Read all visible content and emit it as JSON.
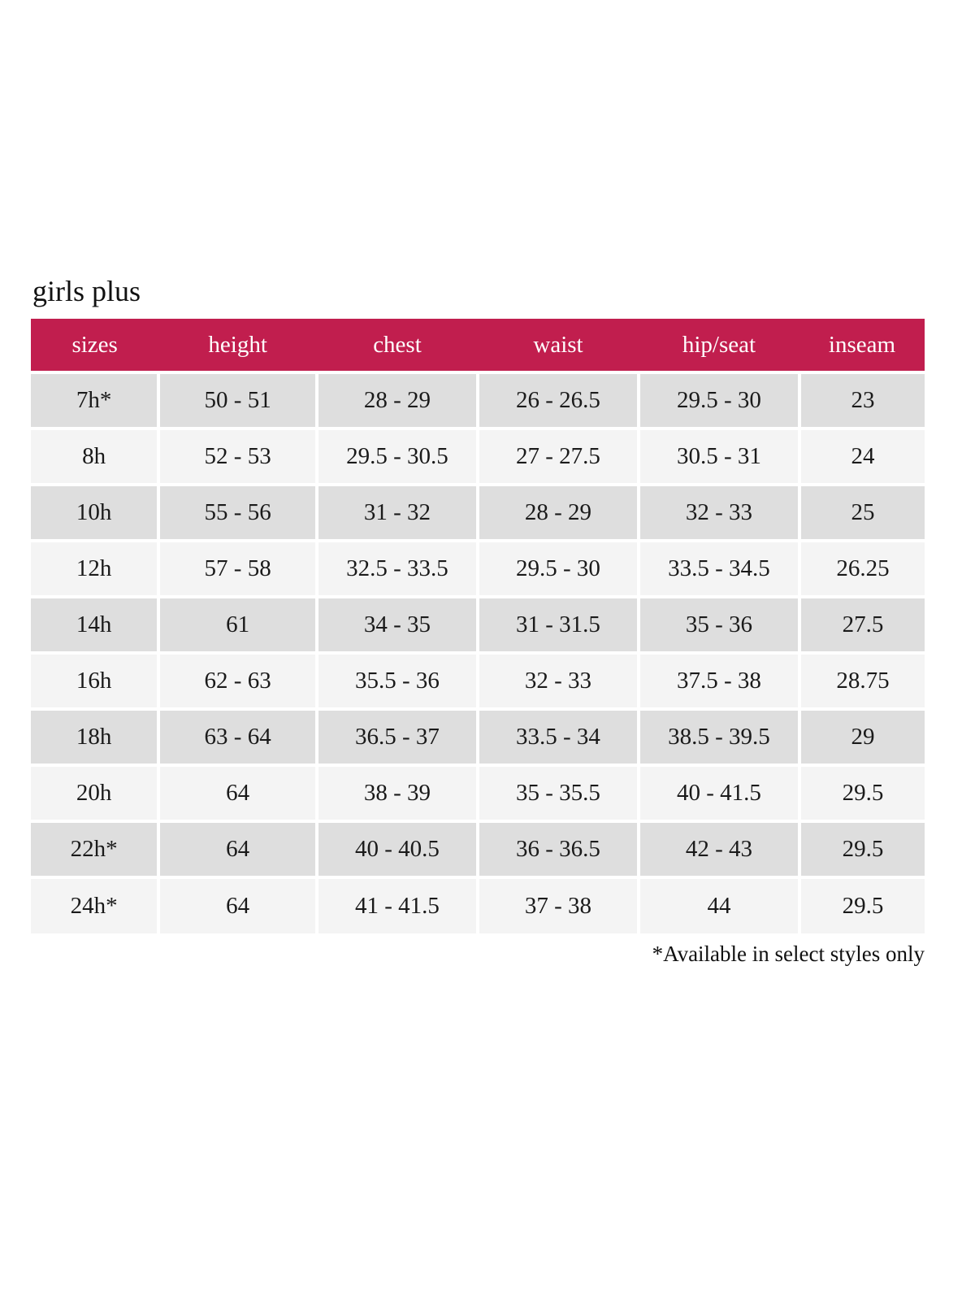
{
  "page": {
    "title": "girls plus",
    "footnote": "*Available in select styles only"
  },
  "colors": {
    "header_bg": "#c11e4e",
    "header_text": "#ffffff",
    "row_alt_bg": "#dedede",
    "row_bg": "#f4f4f4",
    "text": "#1a1a1a"
  },
  "chart_data": {
    "type": "table",
    "title": "girls plus",
    "columns": [
      "sizes",
      "height",
      "chest",
      "waist",
      "hip/seat",
      "inseam"
    ],
    "column_width_pct": [
      14.3,
      17.7,
      18,
      18,
      18,
      14
    ],
    "rows": [
      [
        "7h*",
        "50 - 51",
        "28 - 29",
        "26 - 26.5",
        "29.5 - 30",
        "23"
      ],
      [
        "8h",
        "52 - 53",
        "29.5 - 30.5",
        "27 - 27.5",
        "30.5 - 31",
        "24"
      ],
      [
        "10h",
        "55 - 56",
        "31 - 32",
        "28 - 29",
        "32 - 33",
        "25"
      ],
      [
        "12h",
        "57 - 58",
        "32.5 - 33.5",
        "29.5 - 30",
        "33.5 - 34.5",
        "26.25"
      ],
      [
        "14h",
        "61",
        "34 - 35",
        "31 - 31.5",
        "35 - 36",
        "27.5"
      ],
      [
        "16h",
        "62 - 63",
        "35.5 - 36",
        "32 - 33",
        "37.5 - 38",
        "28.75"
      ],
      [
        "18h",
        "63 - 64",
        "36.5 - 37",
        "33.5 - 34",
        "38.5 - 39.5",
        "29"
      ],
      [
        "20h",
        "64",
        "38 - 39",
        "35 - 35.5",
        "40 - 41.5",
        "29.5"
      ],
      [
        "22h*",
        "64",
        "40 - 40.5",
        "36 - 36.5",
        "42 - 43",
        "29.5"
      ],
      [
        "24h*",
        "64",
        "41 - 41.5",
        "37 - 38",
        "44",
        "29.5"
      ]
    ],
    "footnote": "*Available in select styles only",
    "layout": {
      "first_row_shade": "alt",
      "header_style": "solid-band"
    }
  }
}
